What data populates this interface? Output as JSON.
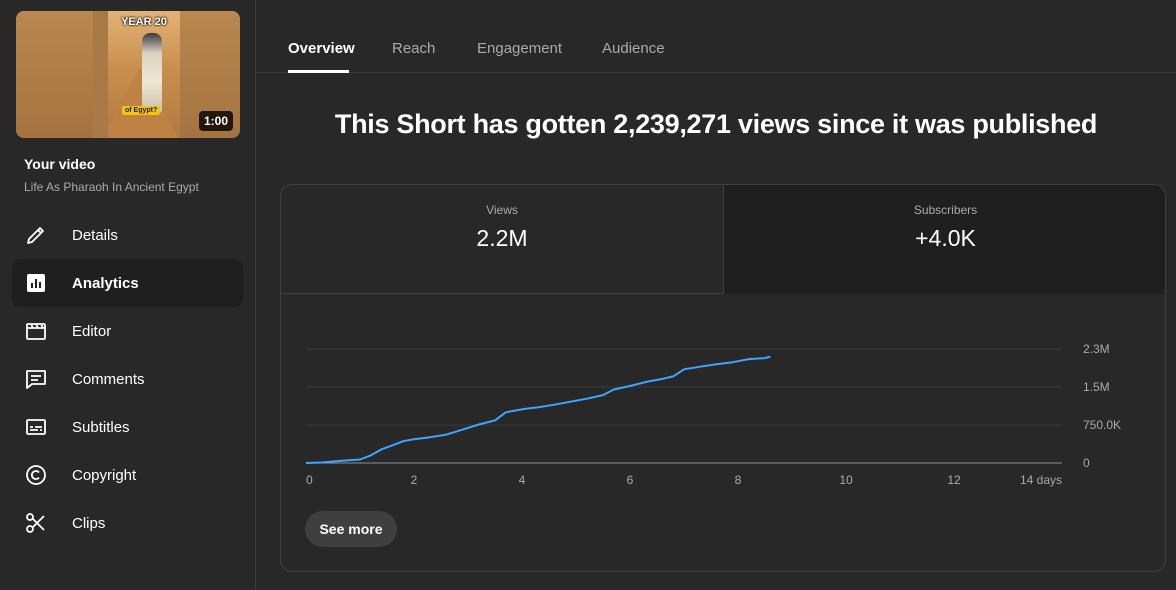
{
  "sidebar": {
    "thumbnail": {
      "overlay_title": "YEAR 20",
      "caption": "of Egypt?",
      "duration": "1:00"
    },
    "your_video_label": "Your video",
    "video_title": "Life As Pharaoh In Ancient Egypt",
    "items": [
      {
        "label": "Details",
        "icon": "pencil-icon"
      },
      {
        "label": "Analytics",
        "icon": "analytics-icon",
        "active": true
      },
      {
        "label": "Editor",
        "icon": "clapperboard-icon"
      },
      {
        "label": "Comments",
        "icon": "comment-icon"
      },
      {
        "label": "Subtitles",
        "icon": "subtitles-icon"
      },
      {
        "label": "Copyright",
        "icon": "copyright-icon"
      },
      {
        "label": "Clips",
        "icon": "scissors-icon"
      }
    ]
  },
  "tabs": [
    {
      "label": "Overview",
      "active": true
    },
    {
      "label": "Reach"
    },
    {
      "label": "Engagement"
    },
    {
      "label": "Audience"
    }
  ],
  "headline": "This Short has gotten 2,239,271 views since it was published",
  "metrics": [
    {
      "label": "Views",
      "value": "2.2M",
      "selected": true
    },
    {
      "label": "Subscribers",
      "value": "+4.0K"
    }
  ],
  "chart_data": {
    "type": "line",
    "title": "",
    "xlabel": "",
    "ylabel": "",
    "x_ticks": [
      "0",
      "2",
      "4",
      "6",
      "8",
      "10",
      "12",
      "14 days"
    ],
    "y_ticks": [
      "0",
      "750.0K",
      "1.5M",
      "2.3M"
    ],
    "xlim": [
      0,
      14
    ],
    "ylim": [
      0,
      2250000
    ],
    "grid": true,
    "series": [
      {
        "color": "#3ea6ff",
        "x": [
          0,
          0.3,
          0.6,
          1.0,
          1.2,
          1.4,
          1.6,
          1.8,
          2.0,
          2.3,
          2.6,
          2.9,
          3.2,
          3.5,
          3.7,
          4.0,
          4.3,
          4.6,
          4.9,
          5.2,
          5.5,
          5.7,
          6.0,
          6.3,
          6.6,
          6.8,
          7.0,
          7.3,
          7.6,
          7.9,
          8.2,
          8.5,
          8.6
        ],
        "y": [
          0,
          10000,
          40000,
          70000,
          150000,
          270000,
          350000,
          430000,
          470000,
          510000,
          560000,
          660000,
          760000,
          840000,
          1000000,
          1060000,
          1100000,
          1150000,
          1210000,
          1270000,
          1340000,
          1450000,
          1520000,
          1600000,
          1660000,
          1710000,
          1850000,
          1900000,
          1950000,
          1990000,
          2050000,
          2070000,
          2100000
        ]
      }
    ]
  },
  "see_more_label": "See more"
}
